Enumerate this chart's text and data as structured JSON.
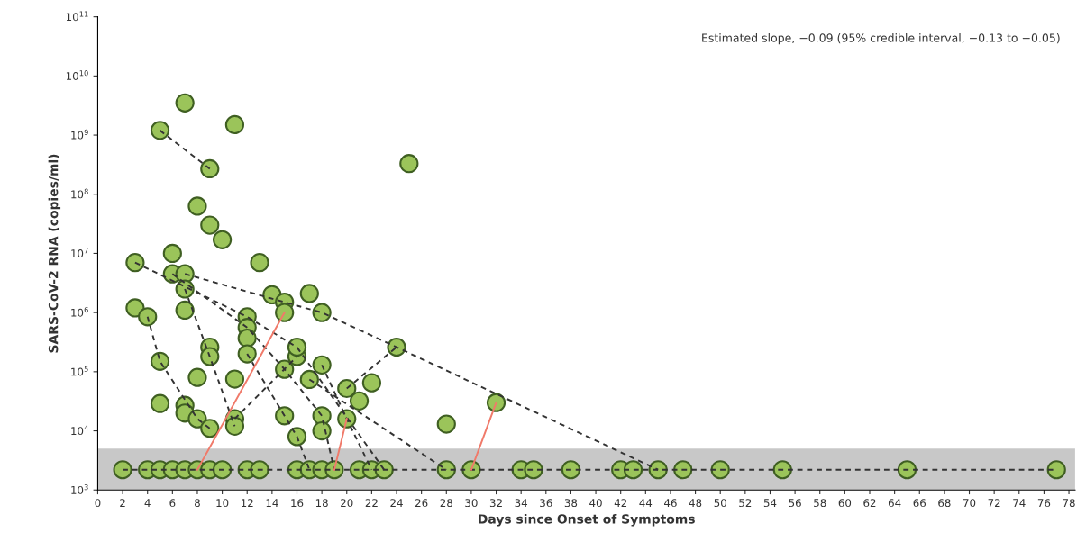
{
  "chart_data": {
    "type": "line",
    "xlabel": "Days since Onset of Symptoms",
    "ylabel": "SARS-CoV-2 RNA (copies/ml)",
    "annotations": [
      "Estimated slope, −0.09 (95% credible interval, −0.13 to −0.05)"
    ],
    "log": "y",
    "xlim": [
      0,
      78.5
    ],
    "ylim": [
      1000,
      100000000000
    ],
    "xticks": [
      0,
      2,
      4,
      6,
      8,
      10,
      12,
      14,
      16,
      18,
      20,
      22,
      24,
      26,
      28,
      30,
      32,
      34,
      36,
      38,
      40,
      42,
      44,
      46,
      48,
      50,
      52,
      54,
      56,
      58,
      60,
      62,
      64,
      66,
      68,
      70,
      72,
      74,
      76,
      78
    ],
    "yticks": [
      {
        "value": 1000,
        "label": "10$^{3}$"
      },
      {
        "value": 10000,
        "label": "10$^{4}$"
      },
      {
        "value": 100000,
        "label": "10$^{5}$"
      },
      {
        "value": 1000000,
        "label": "10$^{6}$"
      },
      {
        "value": 10000000,
        "label": "10$^{7}$"
      },
      {
        "value": 100000000,
        "label": "10$^{8}$"
      },
      {
        "value": 1000000000,
        "label": "10$^{9}$"
      },
      {
        "value": 10000000000,
        "label": "10$^{10}$"
      },
      {
        "value": 100000000000,
        "label": "10$^{11}$"
      }
    ],
    "bands": [
      {
        "axis": "y",
        "from": 1000,
        "to": 5000,
        "color": "#c8c8c8"
      }
    ],
    "grid": false,
    "legend": false,
    "series": [
      {
        "line_style": "dashed",
        "color": "#333333",
        "x": [
          2,
          77
        ],
        "values": [
          2200,
          2200
        ]
      },
      {
        "line_style": "dashed",
        "color": "#333333",
        "x": [
          5,
          9
        ],
        "values": [
          1200000000,
          270000000
        ]
      },
      {
        "line_style": "dashed",
        "color": "#333333",
        "x": [
          3,
          12,
          16,
          23
        ],
        "values": [
          7000000,
          850000,
          260000,
          2200
        ]
      },
      {
        "line_style": "dashed",
        "color": "#333333",
        "x": [
          7,
          15,
          18,
          24,
          45
        ],
        "values": [
          4500000,
          1500000,
          1000000,
          260000,
          2200
        ]
      },
      {
        "line_style": "dashed",
        "color": "#333333",
        "x": [
          4,
          5,
          8,
          9
        ],
        "values": [
          850000,
          150000,
          16000,
          11000
        ]
      },
      {
        "line_style": "dashed",
        "color": "#333333",
        "x": [
          7,
          9,
          11
        ],
        "values": [
          2500000,
          180000,
          12000
        ]
      },
      {
        "line_style": "dashed",
        "color": "#333333",
        "x": [
          11,
          16
        ],
        "values": [
          16000,
          180000
        ]
      },
      {
        "line_style": "dashed",
        "color": "#333333",
        "x": [
          12,
          15,
          16,
          17
        ],
        "values": [
          200000,
          18000,
          8000,
          2200
        ]
      },
      {
        "line_style": "dashed",
        "color": "#333333",
        "x": [
          6,
          12,
          15,
          18,
          19
        ],
        "values": [
          4500000,
          560000,
          110000,
          18000,
          2200
        ]
      },
      {
        "line_style": "dashed",
        "color": "#333333",
        "x": [
          17,
          28
        ],
        "values": [
          74000,
          2200
        ]
      },
      {
        "line_style": "dashed",
        "color": "#333333",
        "x": [
          20,
          24
        ],
        "values": [
          52000,
          260000
        ]
      },
      {
        "line_style": "dashed",
        "color": "#333333",
        "x": [
          18,
          20,
          22
        ],
        "values": [
          130000,
          16000,
          2200
        ]
      },
      {
        "line_style": "solid",
        "color": "#f07a6a",
        "x": [
          8,
          15
        ],
        "values": [
          2200,
          1000000
        ]
      },
      {
        "line_style": "solid",
        "color": "#f07a6a",
        "x": [
          19,
          20
        ],
        "values": [
          2200,
          16000
        ]
      },
      {
        "line_style": "solid",
        "color": "#f07a6a",
        "x": [
          30,
          32
        ],
        "values": [
          2200,
          30000
        ]
      },
      {
        "type": "scatter",
        "marker": "circle",
        "color": "#9bc45a",
        "x": [
          7,
          5,
          11,
          9,
          25,
          8,
          9,
          10,
          3,
          6,
          13,
          6,
          7,
          7,
          7,
          3,
          4,
          14,
          15,
          15,
          17,
          12,
          12,
          12,
          12,
          9,
          9,
          5,
          8,
          11,
          5,
          7,
          7,
          8,
          9,
          11,
          11,
          15,
          16,
          16,
          15,
          16,
          17,
          18,
          24,
          18,
          20,
          22,
          21,
          18,
          18,
          20,
          28,
          32,
          2,
          4,
          5,
          6,
          7,
          8,
          9,
          10,
          12,
          13,
          16,
          17,
          18,
          19,
          21,
          22,
          23,
          28,
          30,
          34,
          35,
          38,
          42,
          43,
          45,
          47,
          50,
          55,
          65,
          77
        ],
        "values": [
          3500000000,
          1200000000,
          1500000000,
          270000000,
          330000000,
          63000000,
          30000000,
          17000000,
          7000000,
          10000000,
          7000000,
          4500000,
          4500000,
          2500000,
          1100000,
          1200000,
          850000,
          2000000,
          1500000,
          1000000,
          2100000,
          850000,
          560000,
          370000,
          200000,
          260000,
          180000,
          150000,
          80000,
          75000,
          29000,
          27000,
          20000,
          16000,
          11000,
          16000,
          12000,
          110000,
          180000,
          260000,
          18000,
          8000,
          74000,
          1000000,
          260000,
          130000,
          52000,
          65000,
          32000,
          18000,
          10000,
          16000,
          13000,
          30000,
          2200,
          2200,
          2200,
          2200,
          2200,
          2200,
          2200,
          2200,
          2200,
          2200,
          2200,
          2200,
          2200,
          2200,
          2200,
          2200,
          2200,
          2200,
          2200,
          2200,
          2200,
          2200,
          2200,
          2200,
          2200,
          2200,
          2200,
          2200,
          2200,
          2200
        ]
      }
    ]
  }
}
